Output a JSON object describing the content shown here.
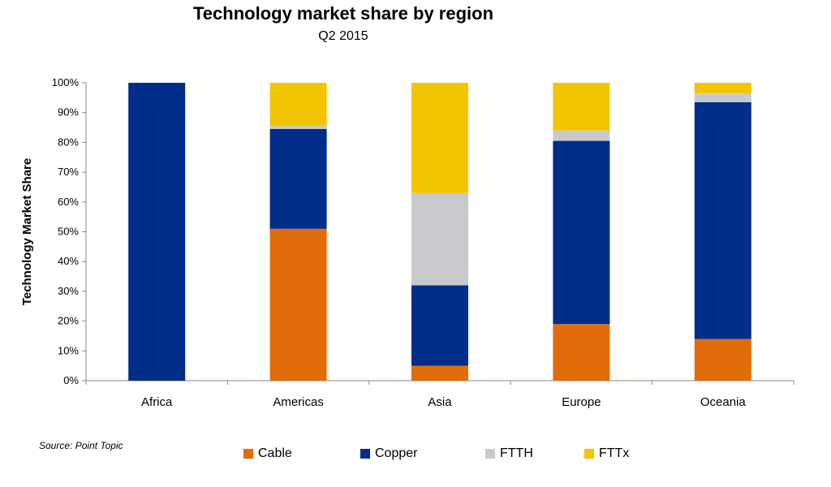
{
  "chart_data": {
    "type": "bar",
    "stacked": true,
    "title": "Technology market share by region",
    "subtitle": "Q2 2015",
    "ylabel": "Technology Market Share",
    "xlabel": "",
    "ylim": [
      0,
      100
    ],
    "yticks": [
      "0%",
      "10%",
      "20%",
      "30%",
      "40%",
      "50%",
      "60%",
      "70%",
      "80%",
      "90%",
      "100%"
    ],
    "categories": [
      "Africa",
      "Americas",
      "Asia",
      "Europe",
      "Oceania"
    ],
    "series": [
      {
        "name": "Cable",
        "color": "#E36C0A",
        "values": [
          0,
          51,
          5,
          19,
          14
        ]
      },
      {
        "name": "Copper",
        "color": "#002D8A",
        "values": [
          100,
          33.5,
          27,
          61.5,
          79.5
        ]
      },
      {
        "name": "FTTH",
        "color": "#C8C9CC",
        "values": [
          0,
          1,
          31,
          3.5,
          3
        ]
      },
      {
        "name": "FTTx",
        "color": "#F2C500",
        "values": [
          0,
          14.5,
          37,
          16,
          3.5
        ]
      }
    ],
    "legend_position": "bottom",
    "grid": false
  },
  "source": "Source: Point Topic"
}
